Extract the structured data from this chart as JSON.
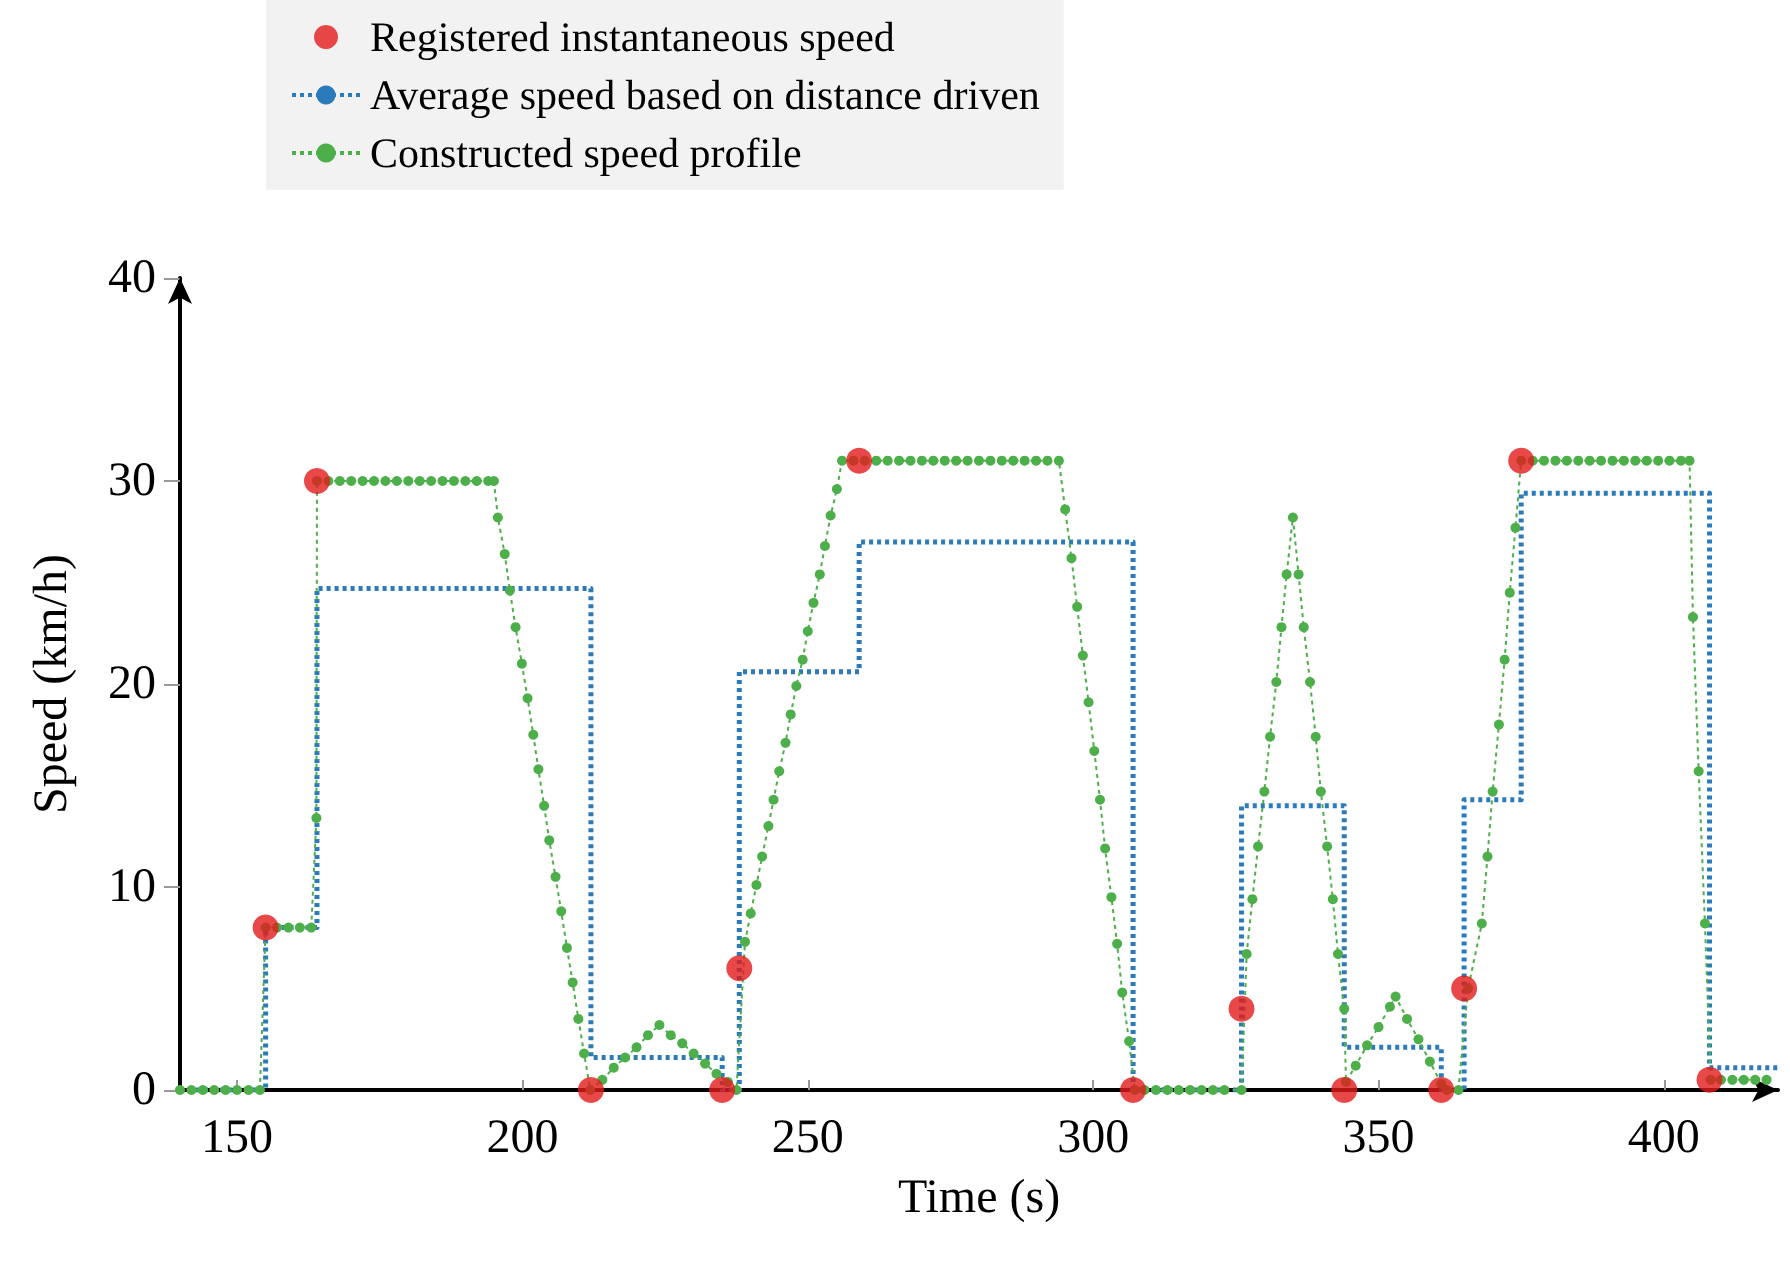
{
  "chart_data": {
    "type": "line",
    "xlabel": "Time (s)",
    "ylabel": "Speed (km/h)",
    "xlim": [
      140,
      420
    ],
    "ylim": [
      0,
      40
    ],
    "xticks": [
      150,
      200,
      250,
      300,
      350,
      400
    ],
    "yticks": [
      0,
      10,
      20,
      30,
      40
    ],
    "grid": false,
    "legend": "top",
    "series": [
      {
        "name": "Registered instantaneous speed",
        "type": "scatter",
        "marker": "circle",
        "color": "#e31a1c",
        "x": [
          155,
          164,
          212,
          235,
          238,
          259,
          307,
          326,
          344,
          361,
          365,
          375,
          408
        ],
        "values": [
          8,
          30,
          0,
          0,
          6,
          31,
          0,
          4,
          0,
          0,
          5,
          31,
          0.5
        ]
      },
      {
        "name": "Average speed based on distance driven",
        "type": "step",
        "marker": "none",
        "line_style": "dotted",
        "color": "#2b7bba",
        "x": [
          140,
          155,
          164,
          212,
          235,
          238,
          259,
          307,
          326,
          344,
          361,
          365,
          375,
          408,
          420
        ],
        "values": [
          0,
          8,
          24.7,
          1.6,
          0,
          20.6,
          27,
          0,
          14,
          2.1,
          0,
          14.3,
          29.4,
          1.1,
          1.1
        ]
      },
      {
        "name": "Constructed speed profile",
        "marker": "circle",
        "line_style": "dotted",
        "color": "#4daf4a",
        "x": [
          140,
          142,
          144,
          146,
          148,
          150,
          152,
          154,
          155,
          157,
          159,
          161,
          163,
          163.9,
          164,
          166,
          168,
          170,
          172,
          174,
          176,
          178,
          180,
          182,
          184,
          186,
          188,
          190,
          192,
          194,
          195,
          195.7,
          196.9,
          197.8,
          198.8,
          199.9,
          200.9,
          201.9,
          202.8,
          203.8,
          204.7,
          205.8,
          206.8,
          207.8,
          208.8,
          209.8,
          210.8,
          211.9,
          214,
          216,
          218,
          220,
          222,
          224,
          226,
          228,
          230,
          232,
          234,
          236,
          237.5,
          239,
          240,
          241,
          242,
          243.1,
          244,
          245,
          246.1,
          247,
          248,
          249.1,
          250,
          251,
          252.1,
          253,
          254,
          255.1,
          256,
          258,
          260,
          262,
          264,
          266,
          268,
          270,
          272,
          274,
          276,
          278,
          280,
          282,
          284,
          286,
          288,
          290,
          292,
          294,
          295.1,
          296.2,
          297.2,
          298.2,
          299.2,
          300.2,
          301.2,
          302.1,
          303.2,
          304.2,
          305.1,
          306.3,
          307.3,
          309,
          311,
          313,
          315,
          317,
          319,
          321,
          323,
          326,
          326.9,
          327.9,
          328.9,
          330,
          331,
          332.1,
          333,
          333.9,
          335,
          336,
          336.9,
          338,
          339,
          339.9,
          341,
          342,
          342.9,
          344,
          344.3,
          346,
          348,
          350,
          352,
          353,
          355,
          357,
          359,
          361,
          362,
          364,
          365.7,
          368.1,
          369.1,
          370,
          371.1,
          372.1,
          373,
          374,
          375,
          377,
          379,
          381,
          383,
          385,
          387,
          389,
          391,
          393,
          395,
          397,
          399,
          401,
          403,
          404.5,
          405.1,
          406.1,
          407.2,
          408.2,
          410,
          412,
          414,
          416,
          418
        ],
        "values": [
          0,
          0,
          0,
          0,
          0,
          0,
          0,
          0,
          8,
          8,
          8,
          8,
          8,
          13.4,
          30,
          30,
          30,
          30,
          30,
          30,
          30,
          30,
          30,
          30,
          30,
          30,
          30,
          30,
          30,
          30,
          30,
          28.2,
          26.4,
          24.6,
          22.8,
          21.0,
          19.3,
          17.5,
          15.8,
          14.0,
          12.3,
          10.5,
          8.8,
          7.0,
          5.3,
          3.5,
          1.8,
          0,
          0.5,
          1.1,
          1.6,
          2.1,
          2.7,
          3.2,
          2.7,
          2.3,
          1.8,
          1.3,
          0.8,
          0.4,
          0,
          7.3,
          8.7,
          10.1,
          11.5,
          13.0,
          14.3,
          15.7,
          17.1,
          18.5,
          19.9,
          21.2,
          22.6,
          24.0,
          25.4,
          26.8,
          28.3,
          29.6,
          31,
          31,
          31,
          31,
          31,
          31,
          31,
          31,
          31,
          31,
          31,
          31,
          31,
          31,
          31,
          31,
          31,
          31,
          31,
          31,
          28.6,
          26.2,
          23.8,
          21.4,
          19.1,
          16.7,
          14.3,
          11.9,
          9.5,
          7.2,
          4.8,
          2.4,
          0,
          0,
          0,
          0,
          0,
          0,
          0,
          0,
          0,
          0,
          6.7,
          9.4,
          12.0,
          14.7,
          17.4,
          20.1,
          22.8,
          25.4,
          28.2,
          25.4,
          22.8,
          20.1,
          17.4,
          14.7,
          12.0,
          9.4,
          6.7,
          4.0,
          0.4,
          1.2,
          2.2,
          3.1,
          4.1,
          4.6,
          3.5,
          2.5,
          1.4,
          0.3,
          0,
          0,
          5.0,
          8.2,
          11.5,
          14.7,
          18.0,
          21.2,
          24.5,
          27.7,
          31,
          31,
          31,
          31,
          31,
          31,
          31,
          31,
          31,
          31,
          31,
          31,
          31,
          31,
          31,
          31,
          23.3,
          15.7,
          8.2,
          0.5,
          0.5,
          0.5,
          0.5,
          0.5,
          0.5
        ]
      }
    ]
  }
}
